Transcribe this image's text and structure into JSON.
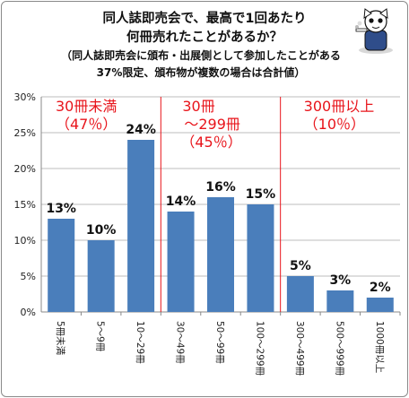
{
  "chart_data": {
    "type": "bar",
    "title": "同人誌即売会で、最高で1回あたり",
    "title_line2": "何冊売れたことがあるか？",
    "subtitle": "（同人誌即売会に頒布・出展側として参加したことがある",
    "subtitle_line2": "37%限定、頒布物が複数の場合は合計値）",
    "categories": [
      "5冊未満",
      "5〜9冊",
      "10〜29冊",
      "30〜49冊",
      "50〜99冊",
      "100〜299冊",
      "300〜499冊",
      "500〜999冊",
      "1000冊以上"
    ],
    "values": [
      13,
      10,
      24,
      14,
      16,
      15,
      5,
      3,
      2
    ],
    "data_labels": [
      "13%",
      "10%",
      "24%",
      "14%",
      "16%",
      "15%",
      "5%",
      "3%",
      "2%"
    ],
    "y_ticks": [
      "0%",
      "5%",
      "10%",
      "15%",
      "20%",
      "25%",
      "30%"
    ],
    "ylim": [
      0,
      30
    ],
    "bar_color": "#4a7ebb",
    "grid": true,
    "groups": [
      {
        "label_lines": [
          "30冊未満",
          "（47％）"
        ],
        "start_index": 0,
        "end_index": 2
      },
      {
        "label_lines": [
          "30冊",
          "〜299冊",
          "（45％）"
        ],
        "start_index": 3,
        "end_index": 5
      },
      {
        "label_lines": [
          "300冊以上",
          "（10％）"
        ],
        "start_index": 6,
        "end_index": 8
      }
    ],
    "group_color": "#e8141b"
  },
  "mascot": {
    "icon": "cartoon-mascot-icon"
  }
}
